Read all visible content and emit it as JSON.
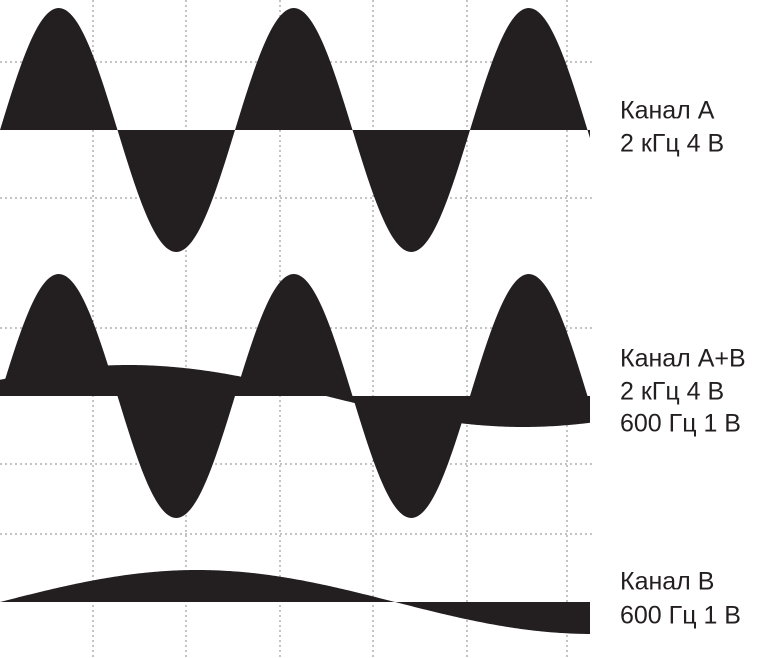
{
  "panels": [
    {
      "lines": [
        "Канал A",
        "2 кГц 4 В"
      ]
    },
    {
      "lines": [
        "Канал A+B",
        "2 кГц 4 В",
        "600 Гц 1 В"
      ]
    },
    {
      "lines": [
        "Канал B",
        "600 Гц 1 В"
      ]
    }
  ]
}
